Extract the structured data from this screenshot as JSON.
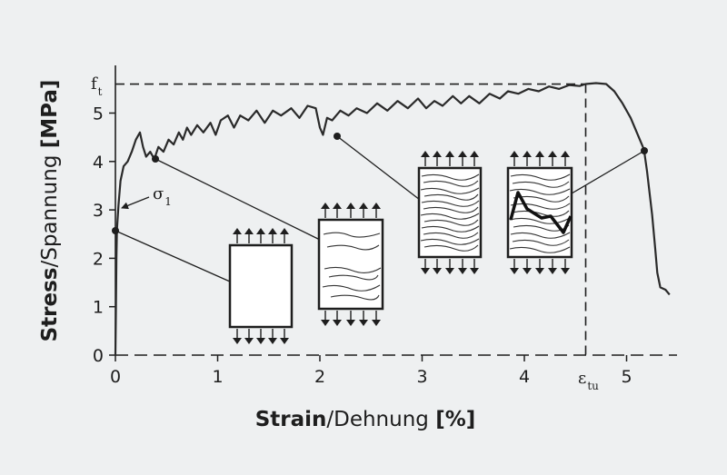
{
  "chart_data": {
    "type": "line",
    "xlabel_main": "Strain",
    "xlabel_alt": "/Dehnung ",
    "xlabel_unit": "[%]",
    "ylabel_main": "Stress",
    "ylabel_alt": "/Spannung ",
    "ylabel_unit": "[MPa]",
    "xlim": [
      0,
      5.4
    ],
    "ylim": [
      0,
      5.7
    ],
    "x_ticks": [
      0,
      1,
      2,
      3,
      4,
      5
    ],
    "y_ticks": [
      0,
      1,
      2,
      3,
      4,
      5
    ],
    "grid": false,
    "annotations": {
      "ft": {
        "main": "f",
        "sub": "t",
        "y": 5.6
      },
      "eps_tu": {
        "main": "ε",
        "sub": "tu",
        "x": 4.6
      },
      "sigma1": {
        "main": "σ",
        "sub": "1",
        "x": 0.02,
        "y": 3.1
      }
    },
    "series": [
      {
        "points": [
          [
            0.0,
            0.0
          ],
          [
            0.005,
            1.0
          ],
          [
            0.01,
            2.0
          ],
          [
            0.015,
            2.6
          ],
          [
            0.03,
            3.1
          ],
          [
            0.05,
            3.6
          ],
          [
            0.08,
            3.9
          ],
          [
            0.12,
            4.0
          ],
          [
            0.16,
            4.2
          ],
          [
            0.2,
            4.45
          ],
          [
            0.24,
            4.6
          ],
          [
            0.27,
            4.3
          ],
          [
            0.3,
            4.1
          ],
          [
            0.34,
            4.2
          ],
          [
            0.38,
            4.05
          ],
          [
            0.42,
            4.3
          ],
          [
            0.47,
            4.2
          ],
          [
            0.52,
            4.45
          ],
          [
            0.57,
            4.35
          ],
          [
            0.62,
            4.6
          ],
          [
            0.66,
            4.45
          ],
          [
            0.7,
            4.7
          ],
          [
            0.74,
            4.55
          ],
          [
            0.8,
            4.75
          ],
          [
            0.86,
            4.6
          ],
          [
            0.93,
            4.8
          ],
          [
            0.98,
            4.55
          ],
          [
            1.03,
            4.85
          ],
          [
            1.1,
            4.95
          ],
          [
            1.16,
            4.7
          ],
          [
            1.22,
            4.95
          ],
          [
            1.3,
            4.85
          ],
          [
            1.38,
            5.05
          ],
          [
            1.46,
            4.8
          ],
          [
            1.54,
            5.05
          ],
          [
            1.62,
            4.95
          ],
          [
            1.72,
            5.1
          ],
          [
            1.8,
            4.9
          ],
          [
            1.88,
            5.15
          ],
          [
            1.96,
            5.1
          ],
          [
            2.0,
            4.7
          ],
          [
            2.03,
            4.55
          ],
          [
            2.07,
            4.9
          ],
          [
            2.12,
            4.85
          ],
          [
            2.2,
            5.05
          ],
          [
            2.28,
            4.95
          ],
          [
            2.36,
            5.1
          ],
          [
            2.46,
            5.0
          ],
          [
            2.56,
            5.2
          ],
          [
            2.66,
            5.05
          ],
          [
            2.76,
            5.25
          ],
          [
            2.86,
            5.1
          ],
          [
            2.96,
            5.3
          ],
          [
            3.04,
            5.1
          ],
          [
            3.12,
            5.25
          ],
          [
            3.2,
            5.15
          ],
          [
            3.3,
            5.35
          ],
          [
            3.38,
            5.2
          ],
          [
            3.46,
            5.35
          ],
          [
            3.56,
            5.2
          ],
          [
            3.66,
            5.4
          ],
          [
            3.76,
            5.3
          ],
          [
            3.84,
            5.45
          ],
          [
            3.94,
            5.4
          ],
          [
            4.04,
            5.5
          ],
          [
            4.14,
            5.45
          ],
          [
            4.24,
            5.55
          ],
          [
            4.34,
            5.5
          ],
          [
            4.44,
            5.58
          ],
          [
            4.54,
            5.56
          ],
          [
            4.6,
            5.6
          ],
          [
            4.7,
            5.62
          ],
          [
            4.8,
            5.6
          ],
          [
            4.88,
            5.45
          ],
          [
            4.96,
            5.2
          ],
          [
            5.04,
            4.9
          ],
          [
            5.12,
            4.5
          ],
          [
            5.17,
            4.25
          ],
          [
            5.2,
            3.8
          ],
          [
            5.25,
            2.9
          ],
          [
            5.28,
            2.2
          ],
          [
            5.3,
            1.7
          ],
          [
            5.33,
            1.4
          ],
          [
            5.38,
            1.35
          ],
          [
            5.42,
            1.25
          ]
        ]
      }
    ]
  }
}
